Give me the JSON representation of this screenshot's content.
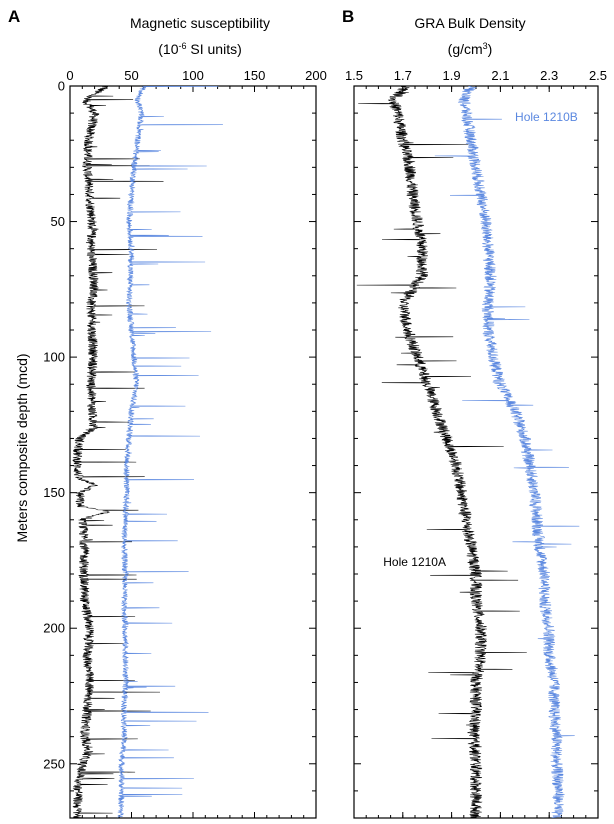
{
  "figure": {
    "panel_a_label": "A",
    "panel_b_label": "B",
    "y_axis_label": "Meters composite depth (mcd)"
  },
  "chart_data": [
    {
      "type": "line",
      "panel": "A",
      "title": "Magnetic susceptibility",
      "xlabel_prefix": "(10",
      "xlabel_exp": "-6",
      "xlabel_suffix": " SI units)",
      "ylabel": "Meters composite depth (mcd)",
      "xlim": [
        0,
        200
      ],
      "ylim": [
        0,
        270
      ],
      "y_inverted": true,
      "x_ticks": [
        0,
        50,
        100,
        150,
        200
      ],
      "y_ticks": [
        0,
        50,
        100,
        150,
        200,
        250
      ],
      "series": [
        {
          "name": "",
          "color": "#000000",
          "depth": [
            0,
            5,
            10,
            20,
            30,
            40,
            50,
            60,
            70,
            74,
            80,
            90,
            100,
            110,
            120,
            126,
            130,
            135,
            140,
            145,
            147,
            150,
            155,
            157,
            160,
            170,
            180,
            190,
            200,
            210,
            220,
            230,
            240,
            245,
            250,
            255,
            258,
            260,
            265,
            270
          ],
          "values": [
            30,
            12,
            20,
            15,
            14,
            16,
            18,
            17,
            19,
            20,
            17,
            18,
            19,
            17,
            18,
            19,
            8,
            6,
            6,
            7,
            22,
            8,
            8,
            30,
            10,
            12,
            11,
            12,
            16,
            14,
            16,
            14,
            12,
            15,
            10,
            8,
            6,
            7,
            6,
            6
          ]
        },
        {
          "name": "",
          "color": "#5b88e0",
          "depth": [
            0,
            5,
            10,
            20,
            30,
            40,
            50,
            60,
            70,
            80,
            90,
            100,
            110,
            120,
            130,
            140,
            150,
            160,
            170,
            180,
            190,
            200,
            210,
            220,
            230,
            240,
            250,
            260,
            270
          ],
          "values": [
            60,
            55,
            58,
            55,
            52,
            50,
            48,
            50,
            49,
            48,
            50,
            52,
            54,
            50,
            48,
            46,
            46,
            45,
            44,
            45,
            44,
            45,
            45,
            45,
            44,
            44,
            42,
            42,
            41
          ]
        }
      ]
    },
    {
      "type": "line",
      "panel": "B",
      "title": "GRA Bulk Density",
      "xlabel_prefix": "(g/cm",
      "xlabel_exp": "3",
      "xlabel_suffix": ")",
      "xlim": [
        1.5,
        2.5
      ],
      "ylim": [
        0,
        270
      ],
      "y_inverted": true,
      "x_ticks": [
        "1.5",
        "1.7",
        "1.9",
        "2.1",
        "2.3",
        "2.5"
      ],
      "y_ticks": [
        0,
        50,
        100,
        150,
        200,
        250
      ],
      "annotations": [
        {
          "text": "Hole 1210A",
          "color": "#000000",
          "x": 1.62,
          "y": 177
        },
        {
          "text": "Hole 1210B",
          "color": "#5b88e0",
          "x": 2.16,
          "y": 13
        }
      ],
      "series": [
        {
          "name": "Hole 1210A",
          "color": "#000000",
          "depth": [
            0,
            5,
            10,
            20,
            30,
            40,
            50,
            60,
            70,
            80,
            90,
            100,
            110,
            120,
            130,
            140,
            150,
            160,
            170,
            180,
            190,
            200,
            210,
            220,
            230,
            240,
            250,
            260,
            270
          ],
          "values": [
            1.72,
            1.66,
            1.68,
            1.7,
            1.73,
            1.74,
            1.76,
            1.78,
            1.78,
            1.7,
            1.72,
            1.76,
            1.8,
            1.84,
            1.88,
            1.92,
            1.94,
            1.96,
            1.98,
            2.0,
            2.0,
            2.02,
            2.02,
            2.0,
            2.0,
            1.99,
            2.0,
            2.0,
            2.0
          ]
        },
        {
          "name": "Hole 1210B",
          "color": "#5b88e0",
          "depth": [
            0,
            5,
            10,
            20,
            30,
            40,
            50,
            60,
            70,
            80,
            90,
            100,
            110,
            120,
            130,
            140,
            150,
            160,
            170,
            180,
            190,
            200,
            210,
            220,
            230,
            240,
            250,
            260,
            270
          ],
          "values": [
            1.98,
            1.95,
            1.96,
            1.98,
            2.0,
            2.02,
            2.04,
            2.05,
            2.06,
            2.05,
            2.05,
            2.07,
            2.1,
            2.16,
            2.2,
            2.22,
            2.24,
            2.25,
            2.26,
            2.28,
            2.28,
            2.3,
            2.3,
            2.32,
            2.32,
            2.33,
            2.33,
            2.34,
            2.33
          ]
        }
      ]
    }
  ]
}
